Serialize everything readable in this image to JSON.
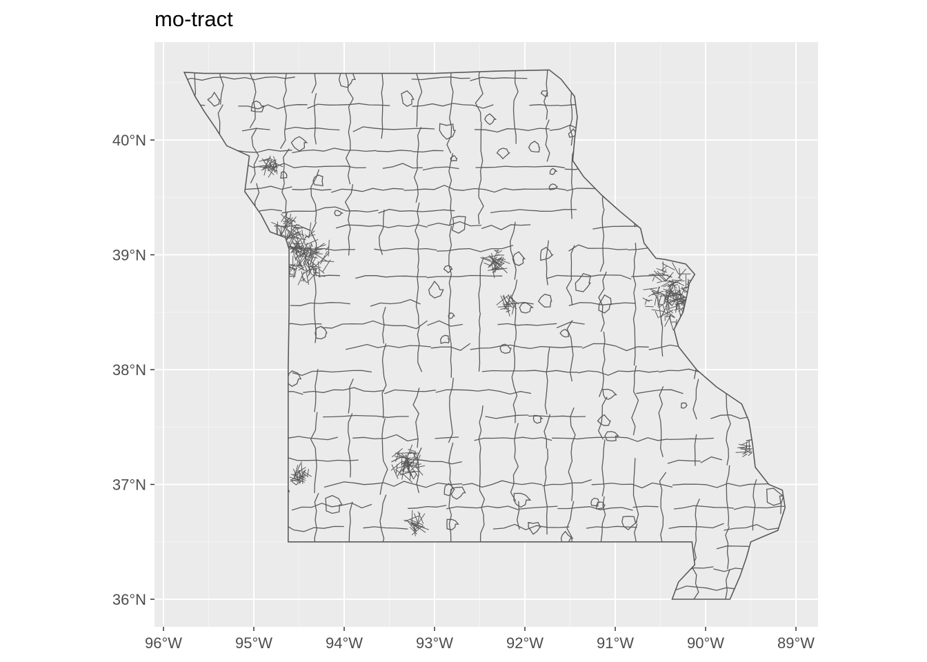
{
  "title": "mo-tract",
  "chart_data": {
    "type": "map",
    "title": "mo-tract",
    "region": "Missouri census tracts",
    "x_axis": {
      "ticks": [
        {
          "value": -96,
          "label": "96°W"
        },
        {
          "value": -95,
          "label": "95°W"
        },
        {
          "value": -94,
          "label": "94°W"
        },
        {
          "value": -93,
          "label": "93°W"
        },
        {
          "value": -92,
          "label": "92°W"
        },
        {
          "value": -91,
          "label": "91°W"
        },
        {
          "value": -90,
          "label": "90°W"
        },
        {
          "value": -89,
          "label": "89°W"
        }
      ],
      "range": [
        -96.1,
        -88.8
      ]
    },
    "y_axis": {
      "ticks": [
        {
          "value": 36,
          "label": "36°N"
        },
        {
          "value": 37,
          "label": "37°N"
        },
        {
          "value": 38,
          "label": "38°N"
        },
        {
          "value": 39,
          "label": "39°N"
        },
        {
          "value": 40,
          "label": "40°N"
        }
      ],
      "range": [
        35.8,
        40.85
      ]
    },
    "grid": true,
    "outline_lonlat": [
      [
        -95.77,
        40.59
      ],
      [
        -95.55,
        40.58
      ],
      [
        -95.2,
        40.58
      ],
      [
        -94.5,
        40.58
      ],
      [
        -93.7,
        40.58
      ],
      [
        -93.0,
        40.58
      ],
      [
        -92.3,
        40.6
      ],
      [
        -91.73,
        40.61
      ],
      [
        -91.6,
        40.53
      ],
      [
        -91.45,
        40.38
      ],
      [
        -91.42,
        40.2
      ],
      [
        -91.45,
        40.0
      ],
      [
        -91.47,
        39.82
      ],
      [
        -91.35,
        39.68
      ],
      [
        -91.15,
        39.52
      ],
      [
        -90.95,
        39.38
      ],
      [
        -90.72,
        39.23
      ],
      [
        -90.68,
        39.1
      ],
      [
        -90.55,
        38.97
      ],
      [
        -90.45,
        38.96
      ],
      [
        -90.22,
        38.92
      ],
      [
        -90.12,
        38.83
      ],
      [
        -90.18,
        38.75
      ],
      [
        -90.22,
        38.6
      ],
      [
        -90.25,
        38.5
      ],
      [
        -90.35,
        38.35
      ],
      [
        -90.3,
        38.2
      ],
      [
        -90.1,
        38.0
      ],
      [
        -89.88,
        37.85
      ],
      [
        -89.6,
        37.7
      ],
      [
        -89.52,
        37.55
      ],
      [
        -89.48,
        37.35
      ],
      [
        -89.45,
        37.15
      ],
      [
        -89.3,
        37.0
      ],
      [
        -89.15,
        36.95
      ],
      [
        -89.12,
        36.8
      ],
      [
        -89.2,
        36.6
      ],
      [
        -89.35,
        36.55
      ],
      [
        -89.5,
        36.5
      ],
      [
        -89.55,
        36.36
      ],
      [
        -89.62,
        36.2
      ],
      [
        -89.73,
        36.0
      ],
      [
        -90.37,
        36.0
      ],
      [
        -90.3,
        36.15
      ],
      [
        -90.12,
        36.3
      ],
      [
        -90.15,
        36.5
      ],
      [
        -91.0,
        36.5
      ],
      [
        -92.0,
        36.5
      ],
      [
        -93.0,
        36.5
      ],
      [
        -94.0,
        36.5
      ],
      [
        -94.62,
        36.5
      ],
      [
        -94.62,
        37.0
      ],
      [
        -94.62,
        38.0
      ],
      [
        -94.61,
        38.5
      ],
      [
        -94.61,
        39.05
      ],
      [
        -94.65,
        39.15
      ],
      [
        -94.82,
        39.2
      ],
      [
        -94.92,
        39.35
      ],
      [
        -95.1,
        39.55
      ],
      [
        -95.05,
        39.86
      ],
      [
        -95.3,
        39.95
      ],
      [
        -95.42,
        40.1
      ],
      [
        -95.55,
        40.25
      ],
      [
        -95.65,
        40.38
      ],
      [
        -95.77,
        40.59
      ]
    ]
  }
}
